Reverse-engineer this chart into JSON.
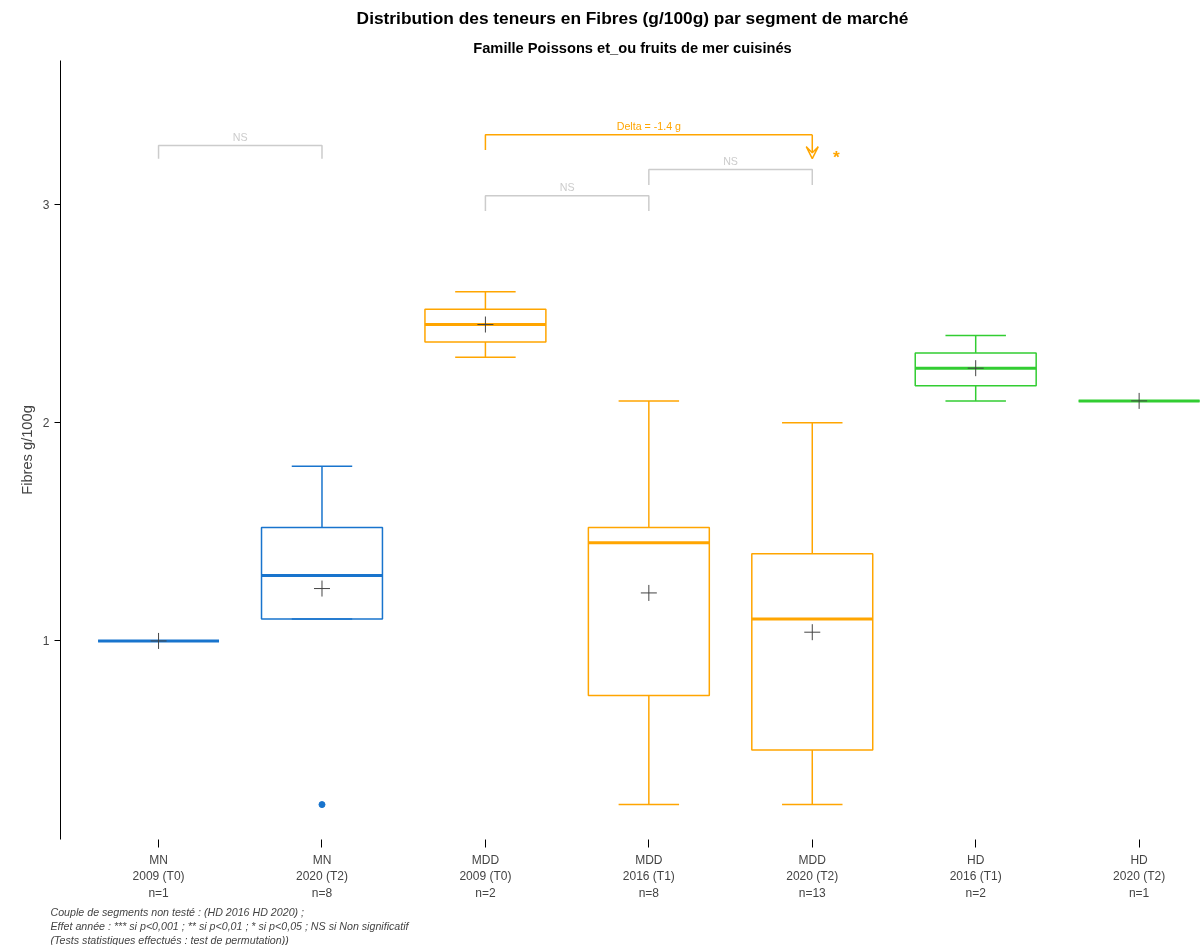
{
  "chart_data": {
    "type": "box",
    "title": "Distribution des teneurs en Fibres (g/100g) par segment de marché",
    "subtitle": "Famille Poissons et_ou fruits de mer cuisinés",
    "ylabel": "Fibres g/100g",
    "categories": [
      "MN\n2009 (T0)\nn=1",
      "MN\n2020 (T2)\nn=8",
      "MDD\n2009 (T0)\nn=2",
      "MDD\n2016 (T1)\nn=8",
      "MDD\n2020 (T2)\nn=13",
      "HD\n2016 (T1)\nn=2",
      "HD\n2020 (T2)\nn=1"
    ],
    "colors": [
      "#1874cd",
      "#1874cd",
      "#ffa500",
      "#ffa500",
      "#ffa500",
      "#32cd32",
      "#32cd32"
    ],
    "boxes": [
      {
        "low": 1.0,
        "q1": 1.0,
        "median": 1.0,
        "q3": 1.0,
        "high": 1.0,
        "mean": 1.0
      },
      {
        "low": 1.1,
        "q1": 1.1,
        "median": 1.3,
        "q3": 1.52,
        "high": 1.8,
        "mean": 1.24,
        "outliers": [
          0.25
        ]
      },
      {
        "low": 2.3,
        "q1": 2.37,
        "median": 2.45,
        "q3": 2.52,
        "high": 2.6,
        "mean": 2.45
      },
      {
        "low": 0.25,
        "q1": 0.75,
        "median": 1.45,
        "q3": 1.52,
        "high": 2.1,
        "mean": 1.22
      },
      {
        "low": 0.25,
        "q1": 0.5,
        "median": 1.1,
        "q3": 1.4,
        "high": 2.0,
        "mean": 1.04
      },
      {
        "low": 2.1,
        "q1": 2.17,
        "median": 2.25,
        "q3": 2.32,
        "high": 2.4,
        "mean": 2.25
      },
      {
        "low": 2.1,
        "q1": 2.1,
        "median": 2.1,
        "q3": 2.1,
        "high": 2.1,
        "mean": 2.1
      }
    ],
    "ylim": [
      0.09,
      3.66
    ],
    "yticks": [
      1,
      2,
      3
    ],
    "grid": false,
    "annotations": [
      "NS",
      "Delta = -1.4 g",
      "*",
      "NS",
      "NS",
      "Couple de segments non testé : (HD 2016 HD 2020) ;",
      "Effet année : *** si p<0,001 ; ** si p<0,01 ; * si p<0,05 ; NS si Non significatif",
      "(Tests statistiques effectués : test de permutation))"
    ]
  }
}
